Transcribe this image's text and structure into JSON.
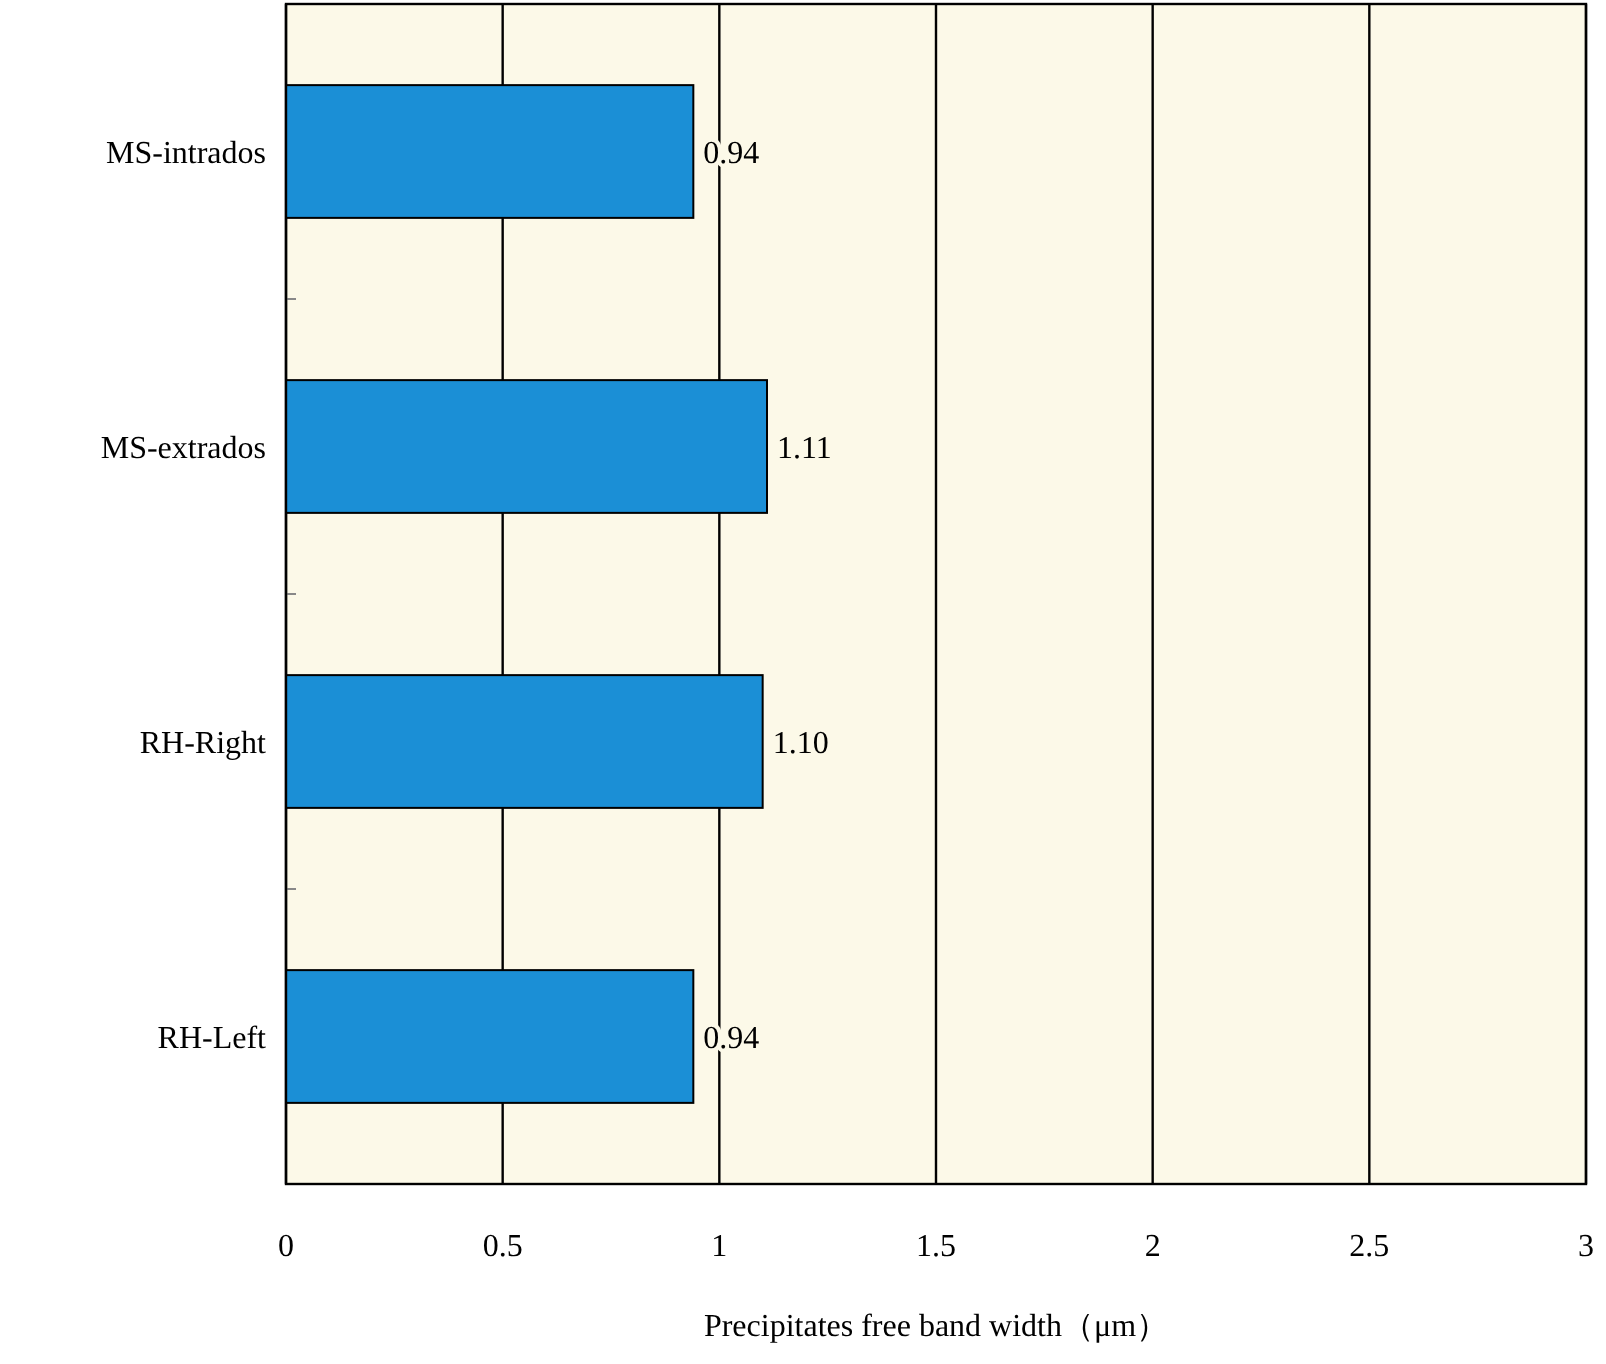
{
  "chart_data": {
    "type": "bar",
    "orientation": "horizontal",
    "xlabel": "Precipitates free band width（μm）",
    "categories": [
      "MS-intrados",
      "MS-extrados",
      "RH-Right",
      "RH-Left"
    ],
    "values": [
      0.94,
      1.11,
      1.1,
      0.94
    ],
    "value_labels": [
      "0.94",
      "1.11",
      "1.10",
      "0.94"
    ],
    "color": "#1b8fd6",
    "xlim": [
      0,
      3
    ],
    "xticks": [
      0,
      0.5,
      1,
      1.5,
      2,
      2.5,
      3
    ],
    "grid": "x"
  }
}
